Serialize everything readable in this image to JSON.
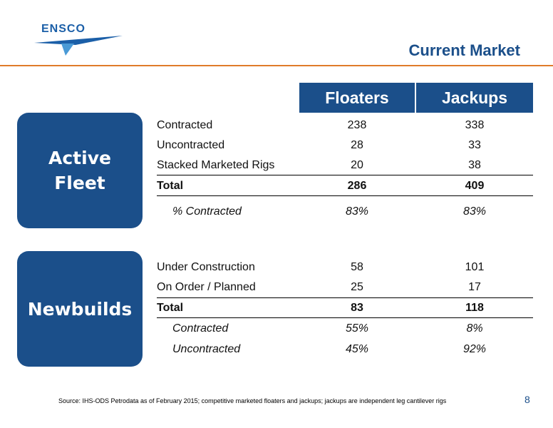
{
  "header": {
    "logo_text": "ENSCO",
    "title": "Current Market"
  },
  "columns": [
    "Floaters",
    "Jackups"
  ],
  "active_fleet": {
    "label": "Active Fleet",
    "rows": [
      {
        "label": "Contracted",
        "floaters": "238",
        "jackups": "338"
      },
      {
        "label": "Uncontracted",
        "floaters": "28",
        "jackups": "33"
      },
      {
        "label": "Stacked Marketed Rigs",
        "floaters": "20",
        "jackups": "38"
      }
    ],
    "total": {
      "label": "Total",
      "floaters": "286",
      "jackups": "409"
    },
    "pct": {
      "label": "% Contracted",
      "floaters": "83%",
      "jackups": "83%"
    }
  },
  "newbuilds": {
    "label": "Newbuilds",
    "rows": [
      {
        "label": "Under Construction",
        "floaters": "58",
        "jackups": "101"
      },
      {
        "label": "On Order / Planned",
        "floaters": "25",
        "jackups": "17"
      }
    ],
    "total": {
      "label": "Total",
      "floaters": "83",
      "jackups": "118"
    },
    "contracted": {
      "label": "Contracted",
      "floaters": "55%",
      "jackups": "8%"
    },
    "uncontracted": {
      "label": "Uncontracted",
      "floaters": "45%",
      "jackups": "92%"
    }
  },
  "footer": {
    "source": "Source: IHS-ODS Petrodata as of February 2015; competitive marketed floaters and jackups; jackups are independent leg cantilever rigs",
    "page_number": "8"
  },
  "colors": {
    "navy": "#1b4f8a",
    "orange": "#e07b2a",
    "logo_blue": "#1b5fa8"
  }
}
